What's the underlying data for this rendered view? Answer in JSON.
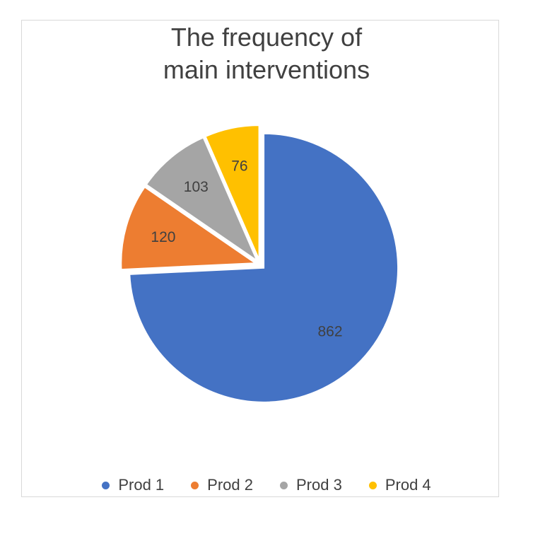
{
  "chart_data": {
    "type": "pie",
    "title_lines": [
      "The frequency of",
      "main interventions"
    ],
    "categories": [
      "Prod 1",
      "Prod 2",
      "Prod 3",
      "Prod 4"
    ],
    "values": [
      862,
      120,
      103,
      76
    ],
    "colors": [
      "#4472c4",
      "#ed7d31",
      "#a5a5a5",
      "#ffc000"
    ],
    "legend_position": "bottom",
    "start_angle": "12 o'clock, clockwise",
    "exploded": true
  }
}
